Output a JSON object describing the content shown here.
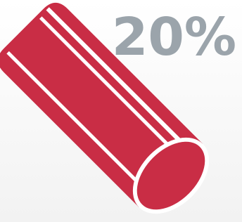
{
  "badge": {
    "text": "20%"
  }
}
